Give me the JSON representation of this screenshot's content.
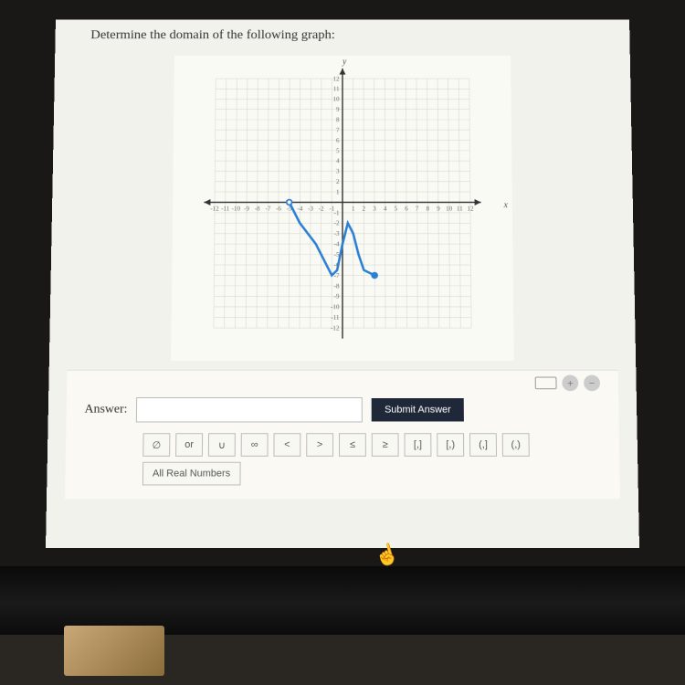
{
  "question": "Determine the domain of the following graph:",
  "graph": {
    "type": "line",
    "x_axis_label": "x",
    "y_axis_label": "y",
    "xlim": [
      -12,
      12
    ],
    "ylim": [
      -12,
      12
    ],
    "tick_step": 1,
    "grid_color": "#d8d8d0",
    "axis_color": "#333333",
    "background_color": "#fafaf5",
    "curve_color": "#2a7fd4",
    "curve_width": 2.2,
    "points": [
      {
        "x": -5,
        "y": 0,
        "type": "open",
        "color": "#2a7fd4"
      },
      {
        "x": 3,
        "y": -7,
        "type": "closed",
        "color": "#2a7fd4"
      }
    ],
    "curve": [
      {
        "x": -5,
        "y": 0
      },
      {
        "x": -4,
        "y": -2
      },
      {
        "x": -2.5,
        "y": -4
      },
      {
        "x": -1.5,
        "y": -6
      },
      {
        "x": -1,
        "y": -7
      },
      {
        "x": -0.5,
        "y": -6.5
      },
      {
        "x": 0,
        "y": -4
      },
      {
        "x": 0.5,
        "y": -2
      },
      {
        "x": 1,
        "y": -3
      },
      {
        "x": 1.5,
        "y": -5
      },
      {
        "x": 2,
        "y": -6.5
      },
      {
        "x": 3,
        "y": -7
      }
    ],
    "x_ticks": [
      -12,
      -11,
      -10,
      -9,
      -8,
      -7,
      -6,
      -5,
      -4,
      -3,
      -2,
      -1,
      1,
      2,
      3,
      4,
      5,
      6,
      7,
      8,
      9,
      10,
      11,
      12
    ],
    "y_ticks": [
      -12,
      -11,
      -10,
      -9,
      -8,
      -7,
      -6,
      -5,
      -4,
      -3,
      -2,
      -1,
      1,
      2,
      3,
      4,
      5,
      6,
      7,
      8,
      9,
      10,
      11,
      12
    ],
    "tick_fontsize": 7,
    "tick_color": "#666666"
  },
  "answer_section": {
    "label": "Answer:",
    "input_value": "",
    "submit_label": "Submit Answer",
    "symbol_buttons": [
      "∅",
      "or",
      "∪",
      "∞",
      "<",
      ">",
      "≤",
      "≥",
      "[,]",
      "[,)",
      "(,]",
      "(,)"
    ],
    "all_reals_label": "All Real Numbers",
    "plus_icon": "+",
    "minus_icon": "−"
  }
}
